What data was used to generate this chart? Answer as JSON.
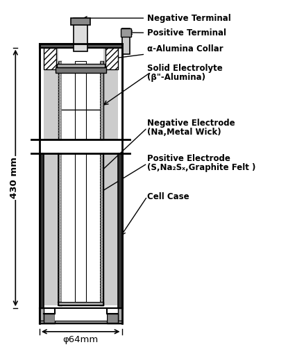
{
  "background_color": "#ffffff",
  "line_color": "#000000",
  "labels": {
    "negative_terminal": "Negative Terminal",
    "positive_terminal": "Positive Terminal",
    "alpha_alumina": "α-Alumina Collar",
    "solid_electrolyte_1": "Solid Electrolyte",
    "solid_electrolyte_2": "(β\"-Alumina)",
    "negative_electrode_1": "Negative Electrode",
    "negative_electrode_2": "(Na,Metal Wick)",
    "positive_electrode_1": "Positive Electrode",
    "positive_electrode_2": "(S,Na₂Sₓ,Graphite Felt )",
    "cell_case": "Cell Case",
    "dim_430": "430 mm",
    "dim_64": "φ64mm"
  },
  "font_size_labels": 8.5,
  "font_size_dims": 9.5
}
